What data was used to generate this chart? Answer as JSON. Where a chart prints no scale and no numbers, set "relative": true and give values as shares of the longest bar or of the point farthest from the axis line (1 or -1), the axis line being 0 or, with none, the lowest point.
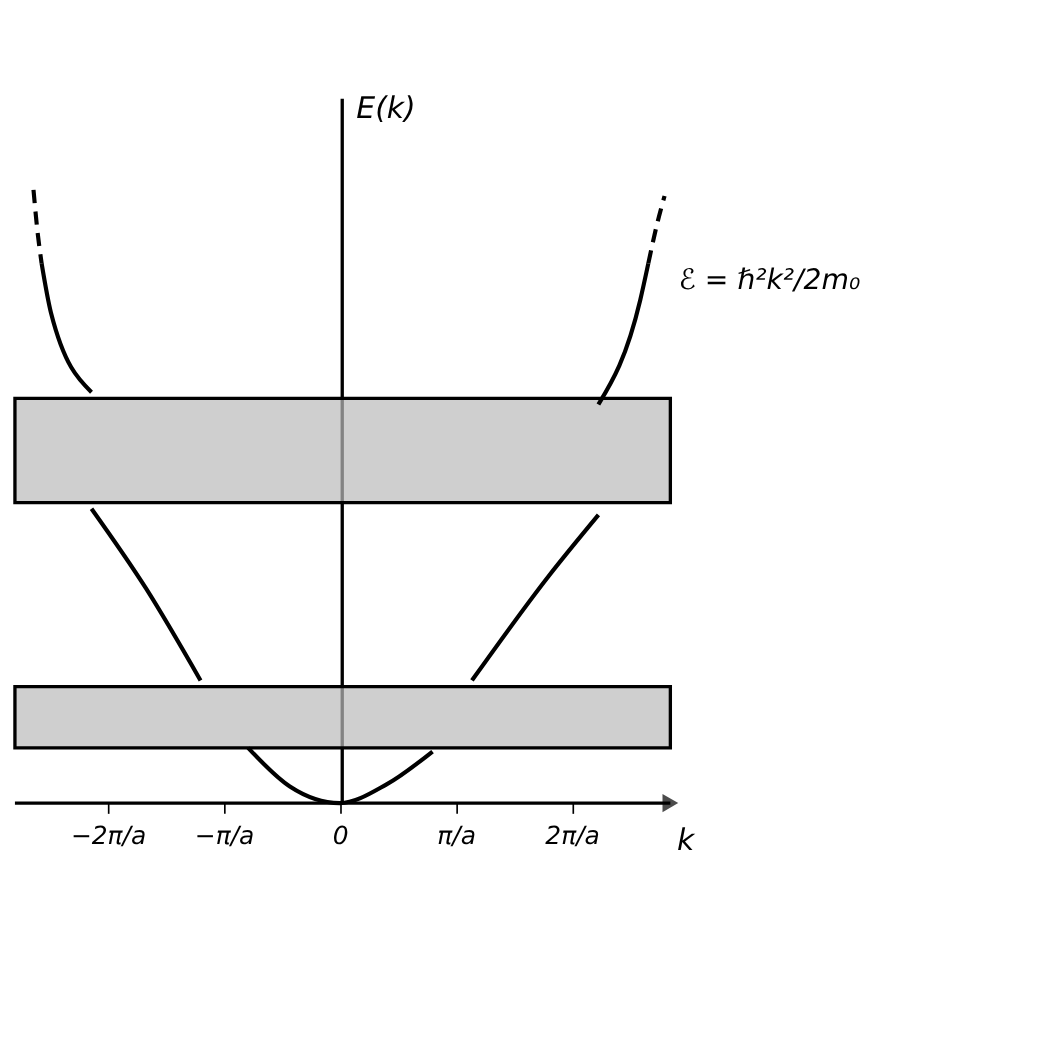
{
  "chart_data": {
    "type": "line",
    "relative": true,
    "xlabel": "k",
    "ylabel": "E(k)",
    "xlim": [
      -2.8,
      2.85
    ],
    "xticks": [
      {
        "value": -2,
        "label": "−2π/a"
      },
      {
        "value": -1,
        "label": "−π/a"
      },
      0,
      {
        "value": 1,
        "label": "π/a"
      },
      {
        "value": 2,
        "label": "2π/a"
      }
    ],
    "series": [
      {
        "color": "#000000",
        "line_style": "solid",
        "x": [
          -0.79,
          -0.43,
          0,
          0.4,
          0.8
        ],
        "values": [
          0.09,
          0.027,
          0,
          0.03,
          0.084
        ]
      },
      {
        "color": "#000000",
        "line_style": "solid",
        "x": [
          -2.14,
          -1.67,
          -1.2
        ],
        "values": [
          0.48,
          0.35,
          0.2
        ]
      },
      {
        "color": "#000000",
        "line_style": "solid",
        "x": [
          1.14,
          1.8,
          2.23
        ],
        "values": [
          0.2,
          0.37,
          0.47
        ]
      },
      {
        "color": "#000000",
        "line_style": "solid",
        "x": [
          -2.57,
          -2.49,
          -2.14
        ],
        "values": [
          0.88,
          0.8,
          0.67
        ]
      },
      {
        "color": "#000000",
        "line_style": "dashed",
        "x": [
          -2.64,
          -2.61,
          -2.57
        ],
        "values": [
          1.0,
          0.94,
          0.88
        ]
      },
      {
        "color": "#000000",
        "line_style": "solid",
        "x": [
          2.23,
          2.59,
          2.66
        ],
        "values": [
          0.65,
          0.82,
          0.88
        ]
      },
      {
        "color": "#000000",
        "line_style": "dashed",
        "x": [
          2.66,
          2.73,
          2.8
        ],
        "values": [
          0.88,
          0.94,
          0.99
        ]
      }
    ],
    "bands": [
      {
        "axis": "y",
        "from": 0.09,
        "to": 0.19,
        "color": "#bbbbbb"
      },
      {
        "axis": "y",
        "from": 0.49,
        "to": 0.66,
        "color": "#bbbbbb"
      }
    ],
    "annotations": [
      "ℰ = ℏ²k²/2m₀"
    ],
    "legend": false,
    "marker": "none"
  }
}
